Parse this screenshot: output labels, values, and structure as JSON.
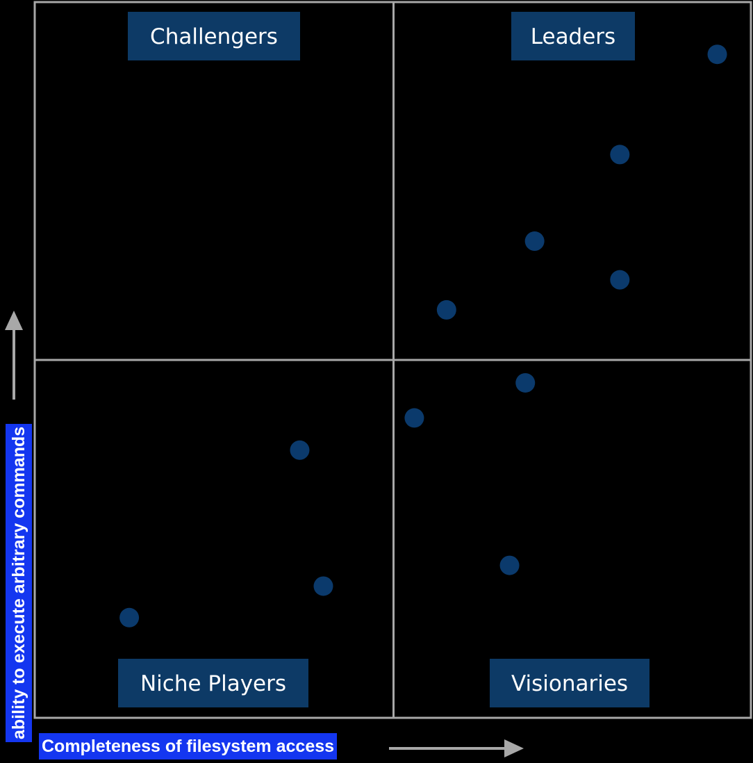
{
  "chart_data": {
    "type": "scatter",
    "title": "",
    "xlabel": "Completeness of filesystem access",
    "ylabel": "ability to execute arbitrary commands",
    "xlim": [
      0,
      100
    ],
    "ylim": [
      0,
      100
    ],
    "grid": false,
    "quadrants": {
      "top_left": "Challengers",
      "top_right": "Leaders",
      "bottom_left": "Niche Players",
      "bottom_right": "Visionaries"
    },
    "points": [
      {
        "x": 95.3,
        "y": 92.7
      },
      {
        "x": 81.7,
        "y": 78.7
      },
      {
        "x": 69.8,
        "y": 66.6
      },
      {
        "x": 81.7,
        "y": 61.2
      },
      {
        "x": 57.5,
        "y": 57.0
      },
      {
        "x": 68.5,
        "y": 46.8
      },
      {
        "x": 53.0,
        "y": 41.9
      },
      {
        "x": 37.0,
        "y": 37.4
      },
      {
        "x": 66.3,
        "y": 21.3
      },
      {
        "x": 40.3,
        "y": 18.4
      },
      {
        "x": 13.2,
        "y": 14.0
      }
    ],
    "colors": {
      "point": "#0b3a6c",
      "quadrant_label_bg": "#0d3a66",
      "grid_line": "#a8a8a8",
      "axis_label_bg": "#1436f0",
      "arrow": "#a8a8a8",
      "background": "#000000"
    }
  }
}
